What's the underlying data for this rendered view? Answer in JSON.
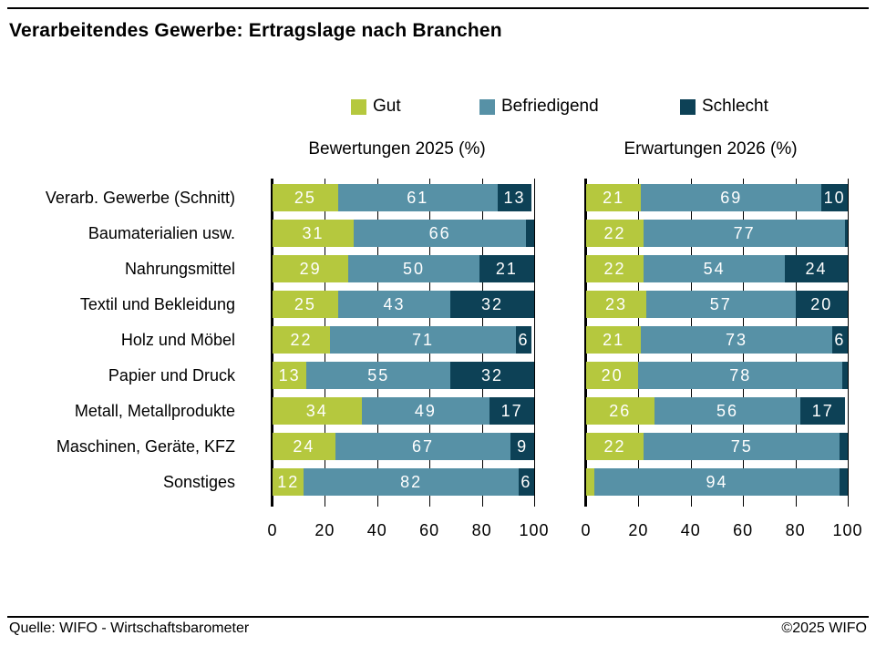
{
  "title": "Verarbeitendes Gewerbe: Ertragslage nach Branchen",
  "colors": {
    "gut": "#b5c83e",
    "befriedigend": "#5791a6",
    "schlecht": "#0d4156"
  },
  "footer": {
    "source": "Quelle: WIFO - Wirtschaftsbarometer",
    "copyright": "©2025 WIFO"
  },
  "chart_data": {
    "type": "bar",
    "orientation": "horizontal",
    "stacked": true,
    "grid": true,
    "legend": [
      "Gut",
      "Befriedigend",
      "Schlecht"
    ],
    "legend_position": "top",
    "categories": [
      "Verarb. Gewerbe (Schnitt)",
      "Baumaterialien usw.",
      "Nahrungsmittel",
      "Textil und Bekleidung",
      "Holz und Möbel",
      "Papier und Druck",
      "Metall, Metallprodukte",
      "Maschinen, Geräte, KFZ",
      "Sonstiges"
    ],
    "xticks": [
      0,
      20,
      40,
      60,
      80,
      100
    ],
    "xlim": [
      0,
      100
    ],
    "label_min_value": 6,
    "panels": [
      {
        "title": "Bewertungen 2025 (%)",
        "series": [
          {
            "name": "Gut",
            "values": [
              25,
              31,
              29,
              25,
              22,
              13,
              34,
              24,
              12
            ]
          },
          {
            "name": "Befriedigend",
            "values": [
              61,
              66,
              50,
              43,
              71,
              55,
              49,
              67,
              82
            ]
          },
          {
            "name": "Schlecht",
            "values": [
              13,
              3,
              21,
              32,
              6,
              32,
              17,
              9,
              6
            ]
          }
        ]
      },
      {
        "title": "Erwartungen 2026 (%)",
        "series": [
          {
            "name": "Gut",
            "values": [
              21,
              22,
              22,
              23,
              21,
              20,
              26,
              22,
              3
            ]
          },
          {
            "name": "Befriedigend",
            "values": [
              69,
              77,
              54,
              57,
              73,
              78,
              56,
              75,
              94
            ]
          },
          {
            "name": "Schlecht",
            "values": [
              10,
              1,
              24,
              20,
              6,
              2,
              17,
              3,
              3
            ]
          }
        ]
      }
    ]
  }
}
